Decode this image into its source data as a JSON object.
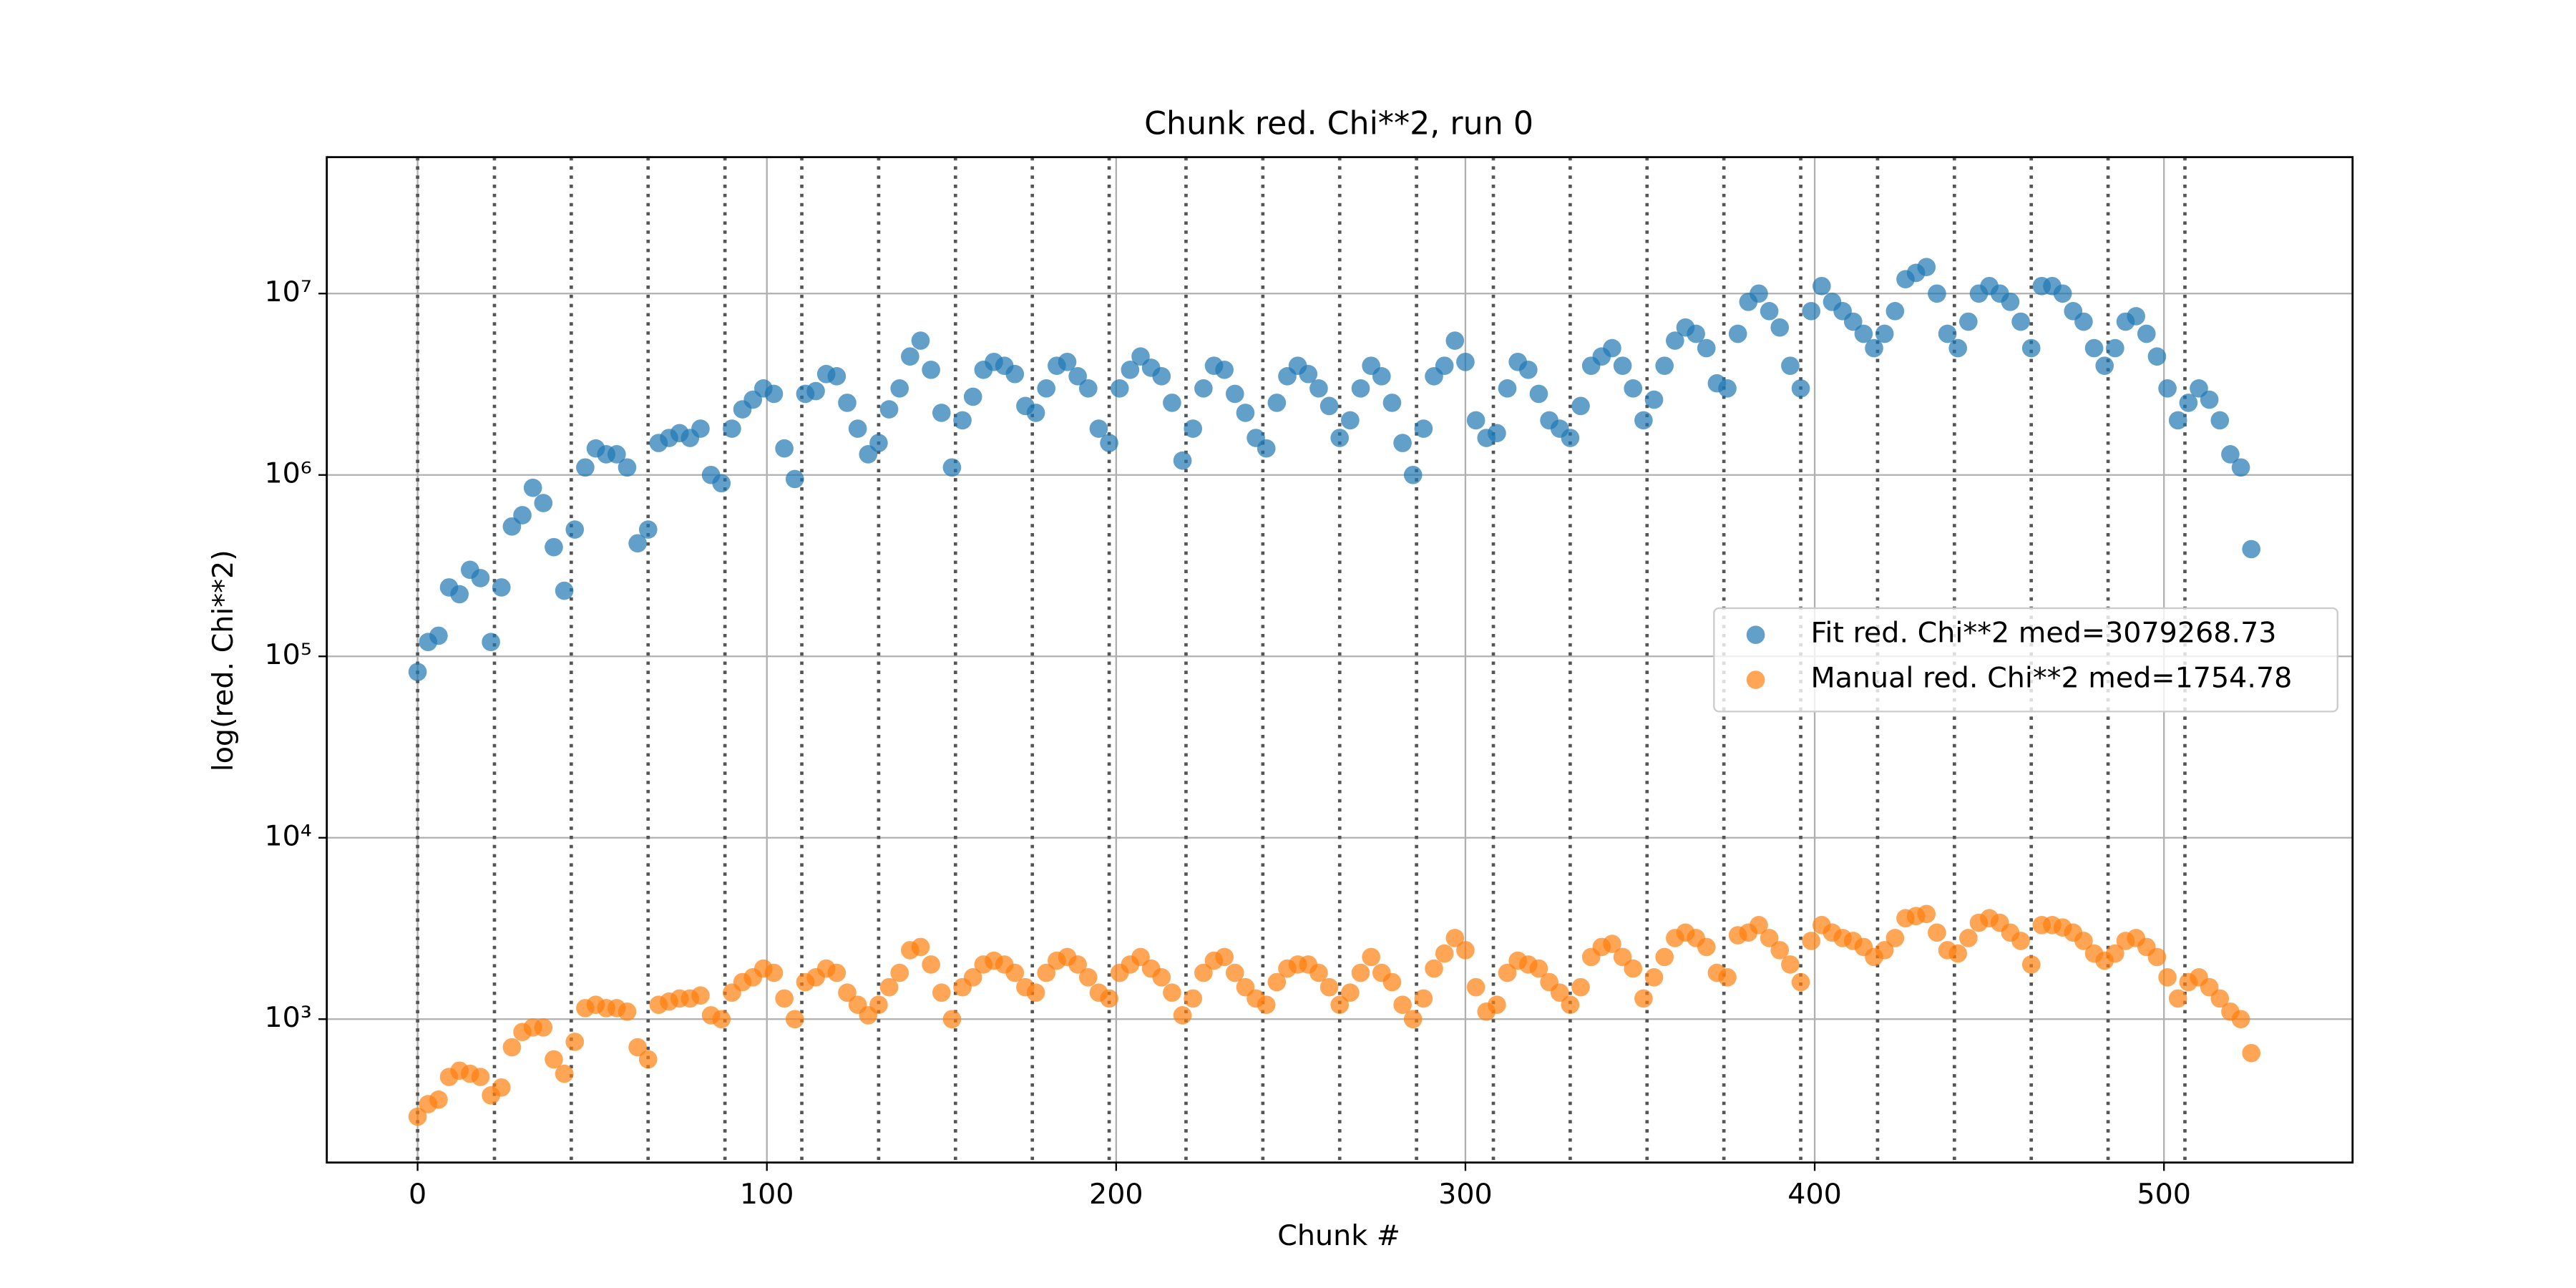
{
  "chart_data": {
    "type": "scatter",
    "title": "Chunk red. Chi**2, run 0",
    "xlabel": "Chunk #",
    "ylabel": "log(red. Chi**2)",
    "yscale": "log",
    "grid": true,
    "legend": "center right",
    "xlim": [
      -26,
      554
    ],
    "ylim": [
      162,
      56500000
    ],
    "xticks": [
      0,
      100,
      200,
      300,
      400,
      500
    ],
    "yticks": [
      {
        "value": 1000,
        "label": "10³"
      },
      {
        "value": 10000,
        "label": "10⁴"
      },
      {
        "value": 100000,
        "label": "10⁵"
      },
      {
        "value": 1000000,
        "label": "10⁶"
      },
      {
        "value": 10000000,
        "label": "10⁷"
      }
    ],
    "vlines": [
      0,
      22,
      44,
      66,
      88,
      110,
      132,
      154,
      176,
      198,
      220,
      242,
      264,
      286,
      308,
      330,
      352,
      374,
      396,
      418,
      440,
      462,
      484,
      506
    ],
    "x": [
      0,
      3,
      6,
      9,
      12,
      15,
      18,
      21,
      24,
      27,
      30,
      33,
      36,
      39,
      42,
      45,
      48,
      51,
      54,
      57,
      60,
      63,
      66,
      69,
      72,
      75,
      78,
      81,
      84,
      87,
      90,
      93,
      96,
      99,
      102,
      105,
      108,
      111,
      114,
      117,
      120,
      123,
      126,
      129,
      132,
      135,
      138,
      141,
      144,
      147,
      150,
      153,
      156,
      159,
      162,
      165,
      168,
      171,
      174,
      177,
      180,
      183,
      186,
      189,
      192,
      195,
      198,
      201,
      204,
      207,
      210,
      213,
      216,
      219,
      222,
      225,
      228,
      231,
      234,
      237,
      240,
      243,
      246,
      249,
      252,
      255,
      258,
      261,
      264,
      267,
      270,
      273,
      276,
      279,
      282,
      285,
      288,
      291,
      294,
      297,
      300,
      303,
      306,
      309,
      312,
      315,
      318,
      321,
      324,
      327,
      330,
      333,
      336,
      339,
      342,
      345,
      348,
      351,
      354,
      357,
      360,
      363,
      366,
      369,
      372,
      375,
      378,
      381,
      384,
      387,
      390,
      393,
      396,
      399,
      402,
      405,
      408,
      411,
      414,
      417,
      420,
      423,
      426,
      429,
      432,
      435,
      438,
      441,
      444,
      447,
      450,
      453,
      456,
      459,
      462,
      465,
      468,
      471,
      474,
      477,
      480,
      483,
      486,
      489,
      492,
      495,
      498,
      501,
      504,
      507,
      510,
      513,
      516,
      519,
      522,
      525
    ],
    "series": [
      {
        "name": "Fit red. Chi**2 med=3079268.73",
        "color": "#1f77b4",
        "values": [
          82000,
          120000,
          130000,
          240000,
          220000,
          300000,
          270000,
          120000,
          240000,
          520000,
          600000,
          850000,
          700000,
          400000,
          230000,
          500000,
          1100000,
          1400000,
          1300000,
          1300000,
          1100000,
          420000,
          500000,
          1500000,
          1600000,
          1700000,
          1600000,
          1800000,
          1000000,
          900000,
          1800000,
          2300000,
          2600000,
          3000000,
          2800000,
          1400000,
          950000,
          2800000,
          2900000,
          3600000,
          3500000,
          2500000,
          1800000,
          1300000,
          1500000,
          2300000,
          3000000,
          4500000,
          5500000,
          3800000,
          2200000,
          1100000,
          2000000,
          2700000,
          3800000,
          4200000,
          4000000,
          3600000,
          2400000,
          2200000,
          3000000,
          4000000,
          4200000,
          3500000,
          3000000,
          1800000,
          1500000,
          3000000,
          3800000,
          4500000,
          3900000,
          3500000,
          2500000,
          1200000,
          1800000,
          3000000,
          4000000,
          3800000,
          2800000,
          2200000,
          1600000,
          1400000,
          2500000,
          3500000,
          4000000,
          3600000,
          3000000,
          2400000,
          1600000,
          2000000,
          3000000,
          4000000,
          3500000,
          2500000,
          1500000,
          1000000,
          1800000,
          3500000,
          4000000,
          5500000,
          4200000,
          2000000,
          1600000,
          1700000,
          3000000,
          4200000,
          3800000,
          2800000,
          2000000,
          1800000,
          1600000,
          2400000,
          4000000,
          4500000,
          5000000,
          4000000,
          3000000,
          2000000,
          2600000,
          4000000,
          5500000,
          6500000,
          6000000,
          5000000,
          3200000,
          3000000,
          6000000,
          9000000,
          10000000,
          8000000,
          6500000,
          4000000,
          3000000,
          8000000,
          11000000,
          9000000,
          8000000,
          7000000,
          6000000,
          5000000,
          6000000,
          8000000,
          12000000,
          13000000,
          14000000,
          10000000,
          6000000,
          5000000,
          7000000,
          10000000,
          11000000,
          10000000,
          9000000,
          7000000,
          5000000,
          11000000,
          11000000,
          10000000,
          8000000,
          7000000,
          5000000,
          4000000,
          5000000,
          7000000,
          7500000,
          6000000,
          4500000,
          3000000,
          2000000,
          2500000,
          3000000,
          2600000,
          2000000,
          1300000,
          1100000,
          390000
        ]
      },
      {
        "name": "Manual red. Chi**2 med=1754.78",
        "color": "#ff7f0e",
        "values": [
          290,
          340,
          360,
          480,
          520,
          500,
          480,
          380,
          420,
          700,
          850,
          900,
          900,
          600,
          500,
          750,
          1150,
          1200,
          1150,
          1150,
          1100,
          700,
          600,
          1200,
          1250,
          1300,
          1300,
          1350,
          1050,
          1000,
          1400,
          1600,
          1700,
          1900,
          1800,
          1300,
          1000,
          1600,
          1700,
          1900,
          1800,
          1400,
          1200,
          1050,
          1200,
          1500,
          1800,
          2400,
          2500,
          2000,
          1400,
          1000,
          1500,
          1700,
          2000,
          2100,
          2000,
          1800,
          1500,
          1400,
          1800,
          2100,
          2200,
          2000,
          1700,
          1400,
          1300,
          1800,
          2000,
          2200,
          1900,
          1700,
          1400,
          1050,
          1300,
          1800,
          2100,
          2200,
          1800,
          1500,
          1300,
          1200,
          1600,
          1900,
          2000,
          2000,
          1800,
          1500,
          1200,
          1400,
          1800,
          2200,
          1800,
          1600,
          1200,
          1000,
          1300,
          1900,
          2300,
          2800,
          2400,
          1500,
          1100,
          1200,
          1800,
          2100,
          2000,
          1900,
          1600,
          1400,
          1200,
          1500,
          2200,
          2500,
          2600,
          2200,
          1900,
          1300,
          1700,
          2200,
          2800,
          3000,
          2800,
          2500,
          1800,
          1700,
          2900,
          3000,
          3300,
          2800,
          2400,
          2000,
          1600,
          2700,
          3300,
          3000,
          2800,
          2700,
          2500,
          2200,
          2400,
          2800,
          3600,
          3700,
          3800,
          3000,
          2400,
          2300,
          2800,
          3400,
          3600,
          3400,
          3000,
          2700,
          2000,
          3300,
          3300,
          3200,
          3000,
          2700,
          2300,
          2100,
          2300,
          2700,
          2800,
          2500,
          2200,
          1700,
          1300,
          1600,
          1700,
          1500,
          1300,
          1100,
          1000,
          650
        ]
      }
    ]
  }
}
